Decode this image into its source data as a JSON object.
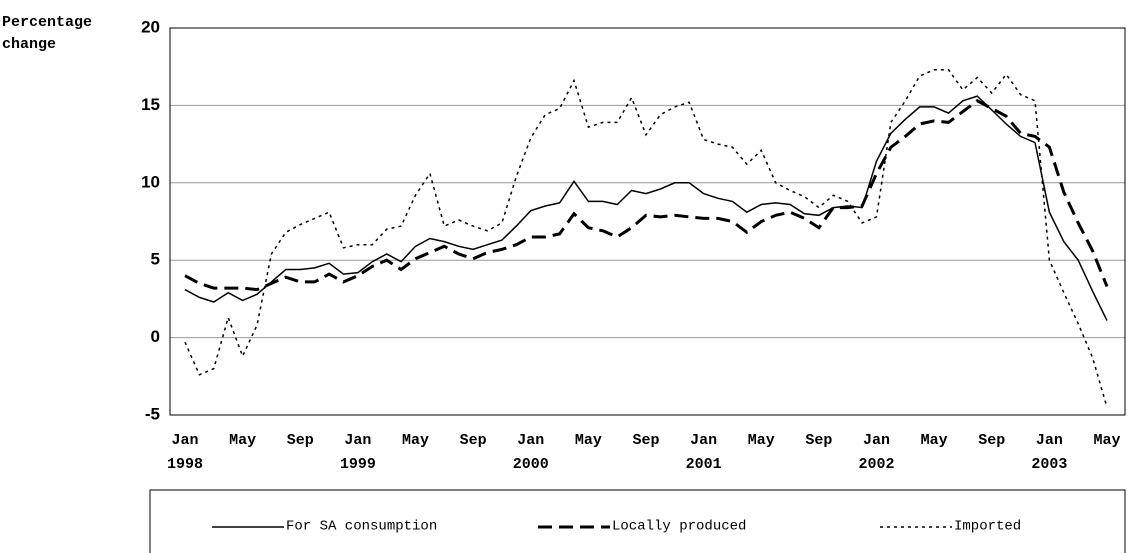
{
  "chart_data": {
    "type": "line",
    "y_label": "Percentage change",
    "categories": [
      "Jan 1998",
      null,
      null,
      null,
      "May",
      null,
      null,
      null,
      "Sep",
      null,
      null,
      null,
      "Jan 1999",
      null,
      null,
      null,
      "May",
      null,
      null,
      null,
      "Sep",
      null,
      null,
      null,
      "Jan 2000",
      null,
      null,
      null,
      "May",
      null,
      null,
      null,
      "Sep",
      null,
      null,
      null,
      "Jan 2001",
      null,
      null,
      null,
      "May",
      null,
      null,
      null,
      "Sep",
      null,
      null,
      null,
      "Jan 2002",
      null,
      null,
      null,
      "May",
      null,
      null,
      null,
      "Sep",
      null,
      null,
      null,
      "Jan 2003",
      null,
      null,
      null,
      "May"
    ],
    "series": [
      {
        "name": "For SA consumption",
        "color": "#000000",
        "line_style": "solid",
        "values": [
          3.1,
          2.6,
          2.3,
          2.9,
          2.4,
          2.8,
          3.6,
          4.4,
          4.4,
          4.5,
          4.8,
          4.1,
          4.2,
          4.9,
          5.4,
          4.9,
          5.9,
          6.4,
          6.2,
          5.9,
          5.7,
          6.0,
          6.3,
          7.2,
          8.2,
          8.5,
          8.7,
          10.1,
          8.8,
          8.8,
          8.6,
          9.5,
          9.3,
          9.6,
          10.0,
          10.0,
          9.3,
          9.0,
          8.8,
          8.1,
          8.6,
          8.7,
          8.6,
          8.0,
          7.9,
          8.4,
          8.5,
          8.4,
          11.4,
          13.2,
          14.1,
          14.9,
          14.9,
          14.5,
          15.3,
          15.6,
          14.7,
          13.8,
          13.0,
          12.6,
          8.1,
          6.2,
          5.0,
          3.0,
          1.1
        ]
      },
      {
        "name": "Locally produced",
        "color": "#000000",
        "line_style": "dashed",
        "values": [
          4.0,
          3.5,
          3.2,
          3.2,
          3.2,
          3.1,
          3.5,
          3.9,
          3.6,
          3.6,
          4.1,
          3.6,
          4.0,
          4.6,
          5.0,
          4.4,
          5.1,
          5.5,
          5.9,
          5.4,
          5.1,
          5.5,
          5.7,
          6.0,
          6.5,
          6.5,
          6.7,
          8.0,
          7.1,
          6.9,
          6.5,
          7.1,
          7.9,
          7.8,
          7.9,
          7.8,
          7.7,
          7.7,
          7.5,
          6.8,
          7.5,
          7.9,
          8.1,
          7.7,
          7.1,
          8.4,
          8.4,
          8.5,
          10.6,
          12.3,
          13.0,
          13.8,
          14.0,
          13.9,
          14.6,
          15.3,
          14.8,
          14.3,
          13.2,
          13.0,
          12.3,
          9.4,
          7.4,
          5.6,
          3.3
        ]
      },
      {
        "name": "Imported",
        "color": "#000000",
        "line_style": "dotted",
        "values": [
          -0.3,
          -2.4,
          -2.0,
          1.3,
          -1.2,
          0.8,
          5.4,
          6.8,
          7.3,
          7.7,
          8.1,
          5.8,
          6.0,
          6.0,
          7.0,
          7.2,
          9.2,
          10.6,
          7.2,
          7.6,
          7.2,
          6.9,
          7.4,
          10.4,
          12.9,
          14.4,
          14.8,
          16.6,
          13.6,
          13.9,
          13.9,
          15.5,
          13.1,
          14.4,
          14.9,
          15.2,
          12.8,
          12.5,
          12.3,
          11.2,
          12.1,
          10.0,
          9.5,
          9.1,
          8.4,
          9.2,
          8.8,
          7.4,
          7.8,
          13.9,
          15.3,
          16.9,
          17.3,
          17.3,
          16.0,
          16.8,
          15.8,
          17.0,
          15.7,
          15.3,
          5.0,
          2.9,
          0.9,
          -1.3,
          -4.5
        ]
      }
    ],
    "ylim": [
      -5,
      20
    ],
    "yticks": [
      -5,
      0,
      5,
      10,
      15,
      20
    ],
    "grid": true,
    "legend": "bottom"
  }
}
